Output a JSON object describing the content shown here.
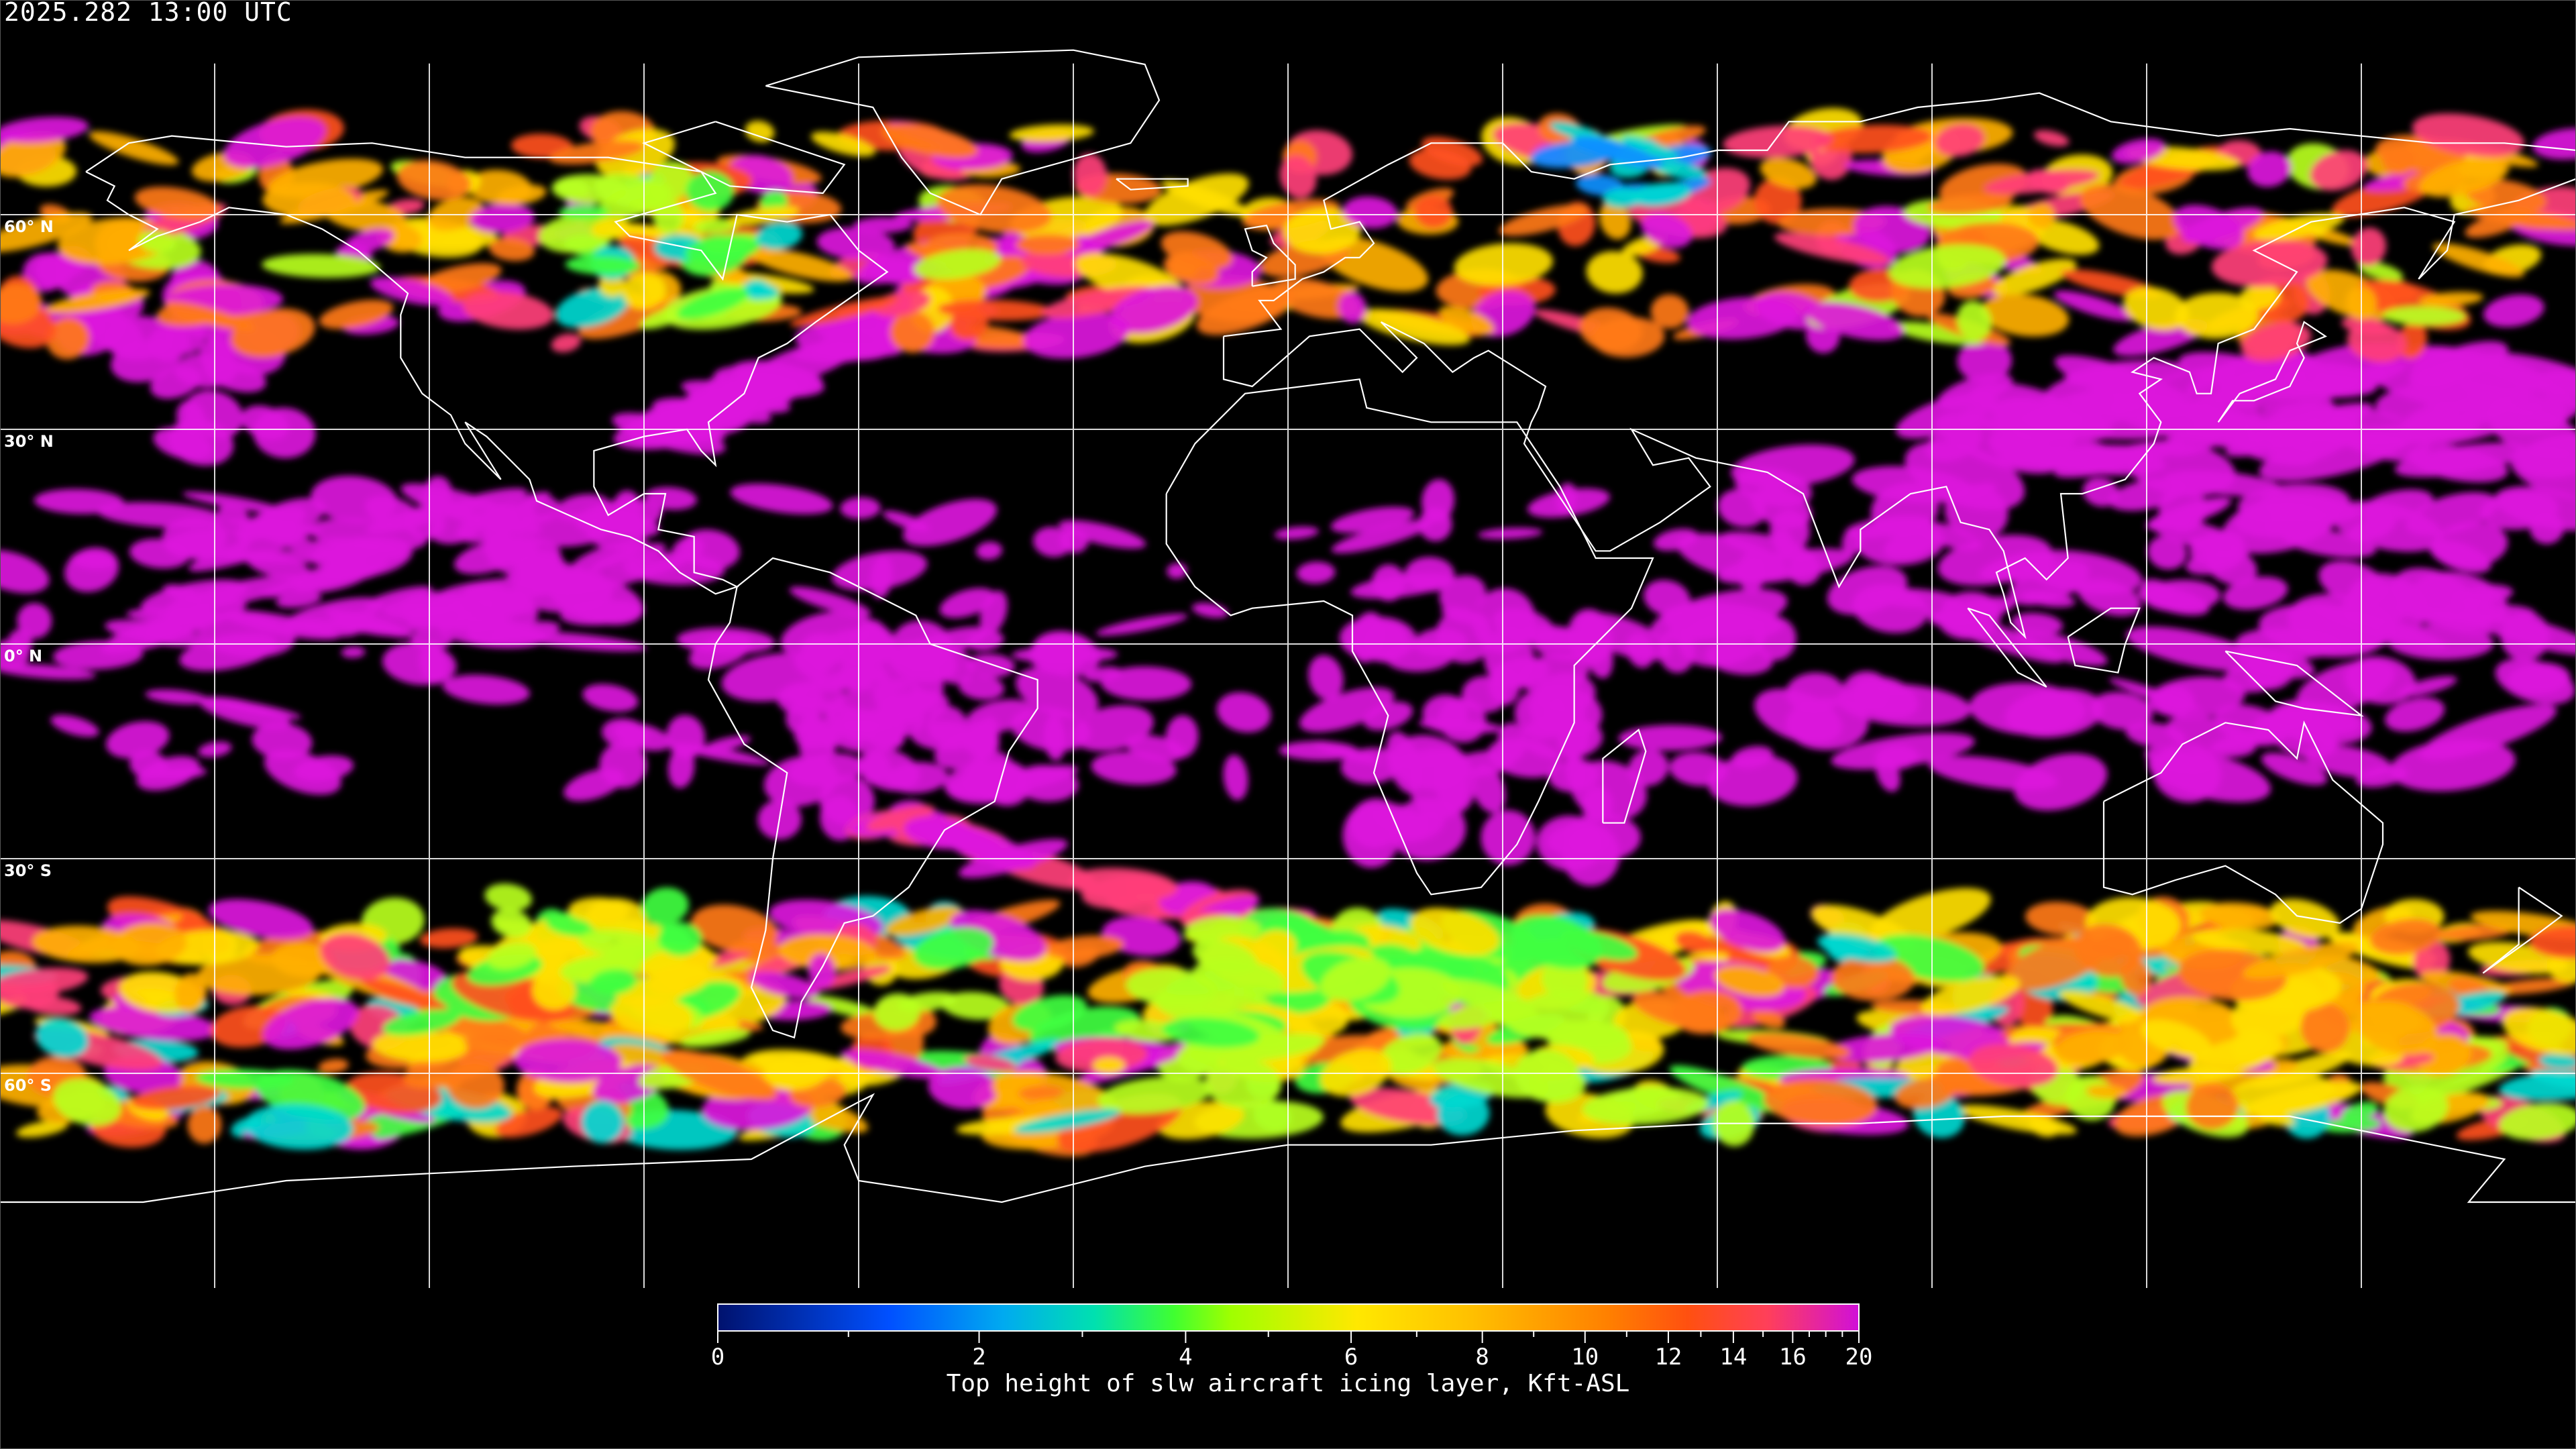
{
  "title": "2025.282 13:00 UTC",
  "map": {
    "projection": "equirectangular",
    "lon_range": [
      -180,
      180
    ],
    "lat_range": [
      -90,
      90
    ],
    "background": "#000000",
    "coastline_color": "#ffffff",
    "grid_color": "#ffffff",
    "lat_lines": [
      60,
      30,
      0,
      -30,
      -60
    ],
    "lon_lines": [
      -150,
      -120,
      -90,
      -60,
      -30,
      0,
      30,
      60,
      90,
      120,
      150
    ],
    "lat_labels": [
      {
        "lat": 60,
        "text": "60° N"
      },
      {
        "lat": 30,
        "text": "30° N"
      },
      {
        "lat": 0,
        "text": "0° N"
      },
      {
        "lat": -30,
        "text": "30° S"
      },
      {
        "lat": -60,
        "text": "60° S"
      }
    ]
  },
  "colorbar": {
    "title": "Top height of slw aircraft icing layer, Kft-ASL",
    "range": [
      0,
      20
    ],
    "major_ticks": [
      0,
      2,
      4,
      6,
      8,
      10,
      12,
      14,
      16,
      20
    ],
    "tick_labels": [
      "0",
      "2",
      "4",
      "6",
      "8",
      "10",
      "12",
      "14",
      "16",
      "20"
    ],
    "minor_ticks": [
      1,
      3,
      5,
      7,
      9,
      11,
      13,
      15,
      17,
      18,
      19
    ],
    "colors": [
      "#00126e",
      "#0050ff",
      "#00aaf0",
      "#00e0b0",
      "#40ff30",
      "#a0ff00",
      "#ffe800",
      "#ffc000",
      "#ff8000",
      "#ff5010",
      "#ff3f5a",
      "#d010d8"
    ]
  }
}
